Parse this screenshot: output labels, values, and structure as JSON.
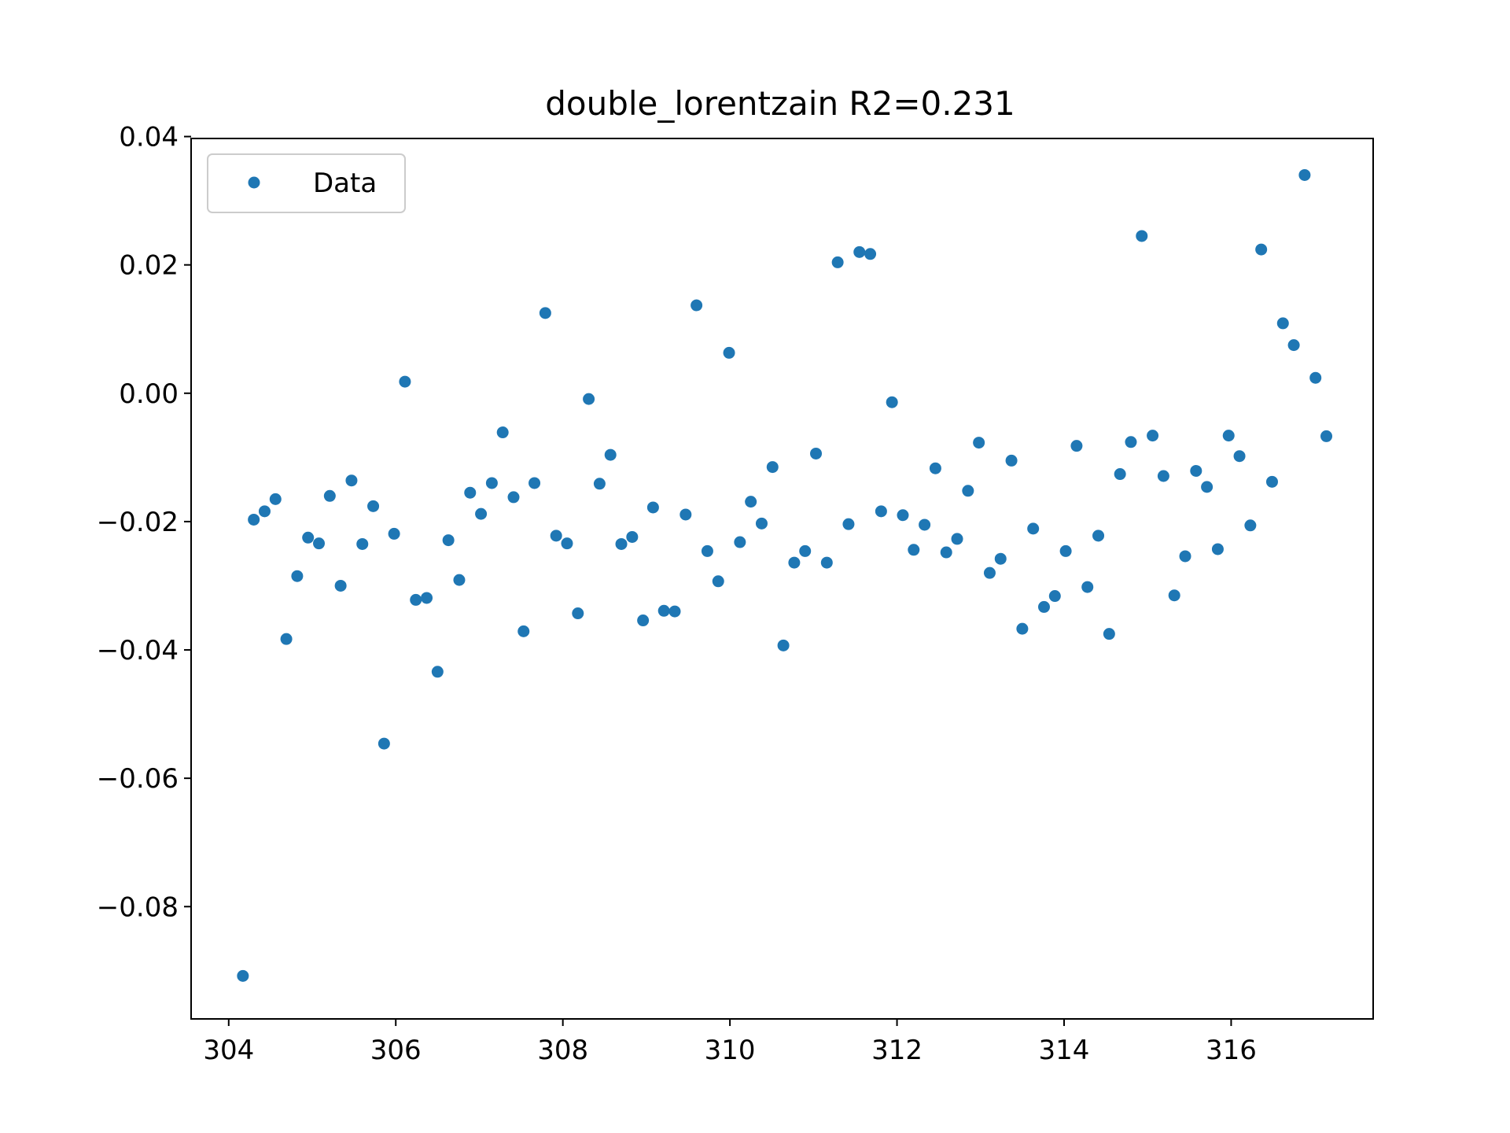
{
  "chart_data": {
    "type": "scatter",
    "title": "double_lorentzain R2=0.231",
    "xlabel": "",
    "ylabel": "",
    "xlim": [
      303.55,
      317.7
    ],
    "ylim": [
      -0.0975,
      0.0397
    ],
    "xticks": [
      304,
      306,
      308,
      310,
      312,
      314,
      316
    ],
    "xtick_labels": [
      "304",
      "306",
      "308",
      "310",
      "312",
      "314",
      "316"
    ],
    "yticks": [
      -0.08,
      -0.06,
      -0.04,
      -0.02,
      0.0,
      0.02,
      0.04
    ],
    "ytick_labels": [
      "−0.08",
      "−0.06",
      "−0.04",
      "−0.02",
      "0.00",
      "0.02",
      "0.04"
    ],
    "grid": false,
    "legend": {
      "position": "top-left",
      "entries": [
        "Data"
      ]
    },
    "colors": {
      "series": "#1f77b4",
      "axes": "#000000",
      "legend_border": "#cccccc"
    },
    "series": [
      {
        "name": "Data",
        "x": [
          304.17,
          304.3,
          304.43,
          304.56,
          304.69,
          304.82,
          304.95,
          305.08,
          305.21,
          305.34,
          305.47,
          305.6,
          305.73,
          305.86,
          305.98,
          306.11,
          306.24,
          306.37,
          306.5,
          306.63,
          306.76,
          306.89,
          307.02,
          307.15,
          307.28,
          307.41,
          307.53,
          307.66,
          307.79,
          307.92,
          308.05,
          308.18,
          308.31,
          308.44,
          308.57,
          308.7,
          308.83,
          308.96,
          309.08,
          309.21,
          309.34,
          309.47,
          309.6,
          309.73,
          309.86,
          309.99,
          310.12,
          310.25,
          310.38,
          310.51,
          310.64,
          310.77,
          310.9,
          311.03,
          311.16,
          311.29,
          311.42,
          311.55,
          311.68,
          311.81,
          311.94,
          312.07,
          312.2,
          312.33,
          312.46,
          312.59,
          312.72,
          312.85,
          312.98,
          313.11,
          313.24,
          313.37,
          313.5,
          313.63,
          313.76,
          313.89,
          314.02,
          314.15,
          314.28,
          314.41,
          314.54,
          314.67,
          314.8,
          314.93,
          315.06,
          315.19,
          315.32,
          315.45,
          315.58,
          315.71,
          315.84,
          315.97,
          316.1,
          316.23,
          316.36,
          316.49,
          316.62,
          316.75,
          316.88,
          317.01,
          317.14
        ],
        "y": [
          -0.0908,
          -0.0197,
          -0.0184,
          -0.0165,
          -0.0383,
          -0.0285,
          -0.0225,
          -0.0234,
          -0.016,
          -0.03,
          -0.0136,
          -0.0235,
          -0.0176,
          -0.0546,
          -0.0219,
          0.0018,
          -0.0322,
          -0.0319,
          -0.0434,
          -0.0229,
          -0.0291,
          -0.0155,
          -0.0188,
          -0.014,
          -0.0061,
          -0.0162,
          -0.0371,
          -0.014,
          0.0125,
          -0.0222,
          -0.0234,
          -0.0343,
          -0.0009,
          -0.0141,
          -0.0096,
          -0.0235,
          -0.0224,
          -0.0354,
          -0.0178,
          -0.0339,
          -0.034,
          -0.0189,
          0.0137,
          -0.0246,
          -0.0293,
          0.0063,
          -0.0232,
          -0.0169,
          -0.0203,
          -0.0115,
          -0.0393,
          -0.0264,
          -0.0246,
          -0.0094,
          -0.0264,
          0.0204,
          -0.0204,
          0.022,
          0.0217,
          -0.0184,
          -0.0014,
          -0.019,
          -0.0244,
          -0.0205,
          -0.0117,
          -0.0248,
          -0.0227,
          -0.0152,
          -0.0077,
          -0.028,
          -0.0258,
          -0.0105,
          -0.0367,
          -0.0211,
          -0.0333,
          -0.0316,
          -0.0246,
          -0.0082,
          -0.0302,
          -0.0222,
          -0.0375,
          -0.0126,
          -0.0076,
          0.0245,
          -0.0066,
          -0.0129,
          -0.0315,
          -0.0254,
          -0.0121,
          -0.0146,
          -0.0243,
          -0.0066,
          -0.0098,
          -0.0206,
          0.0224,
          -0.0138,
          0.0109,
          0.0075,
          0.034,
          0.0024,
          -0.0067
        ]
      }
    ]
  }
}
